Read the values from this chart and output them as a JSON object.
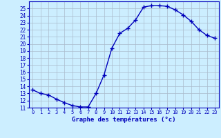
{
  "x": [
    0,
    1,
    2,
    3,
    4,
    5,
    6,
    7,
    8,
    9,
    10,
    11,
    12,
    13,
    14,
    15,
    16,
    17,
    18,
    19,
    20,
    21,
    22,
    23
  ],
  "y": [
    13.5,
    13.0,
    12.8,
    12.2,
    11.7,
    11.3,
    11.1,
    11.1,
    13.0,
    15.6,
    19.4,
    21.5,
    22.2,
    23.4,
    25.2,
    25.4,
    25.4,
    25.3,
    24.8,
    24.1,
    23.2,
    22.0,
    21.2,
    20.8
  ],
  "line_color": "#0000bb",
  "marker": "+",
  "marker_size": 4,
  "linewidth": 1.0,
  "bg_color": "#cceeff",
  "grid_color": "#aabbcc",
  "xlabel": "Graphe des températures (°c)",
  "xlabel_color": "#0000bb",
  "tick_color": "#0000bb",
  "ylim": [
    11,
    26
  ],
  "yticks": [
    11,
    12,
    13,
    14,
    15,
    16,
    17,
    18,
    19,
    20,
    21,
    22,
    23,
    24,
    25
  ],
  "xticks": [
    0,
    1,
    2,
    3,
    4,
    5,
    6,
    7,
    8,
    9,
    10,
    11,
    12,
    13,
    14,
    15,
    16,
    17,
    18,
    19,
    20,
    21,
    22,
    23
  ],
  "xlim": [
    -0.5,
    23.5
  ]
}
